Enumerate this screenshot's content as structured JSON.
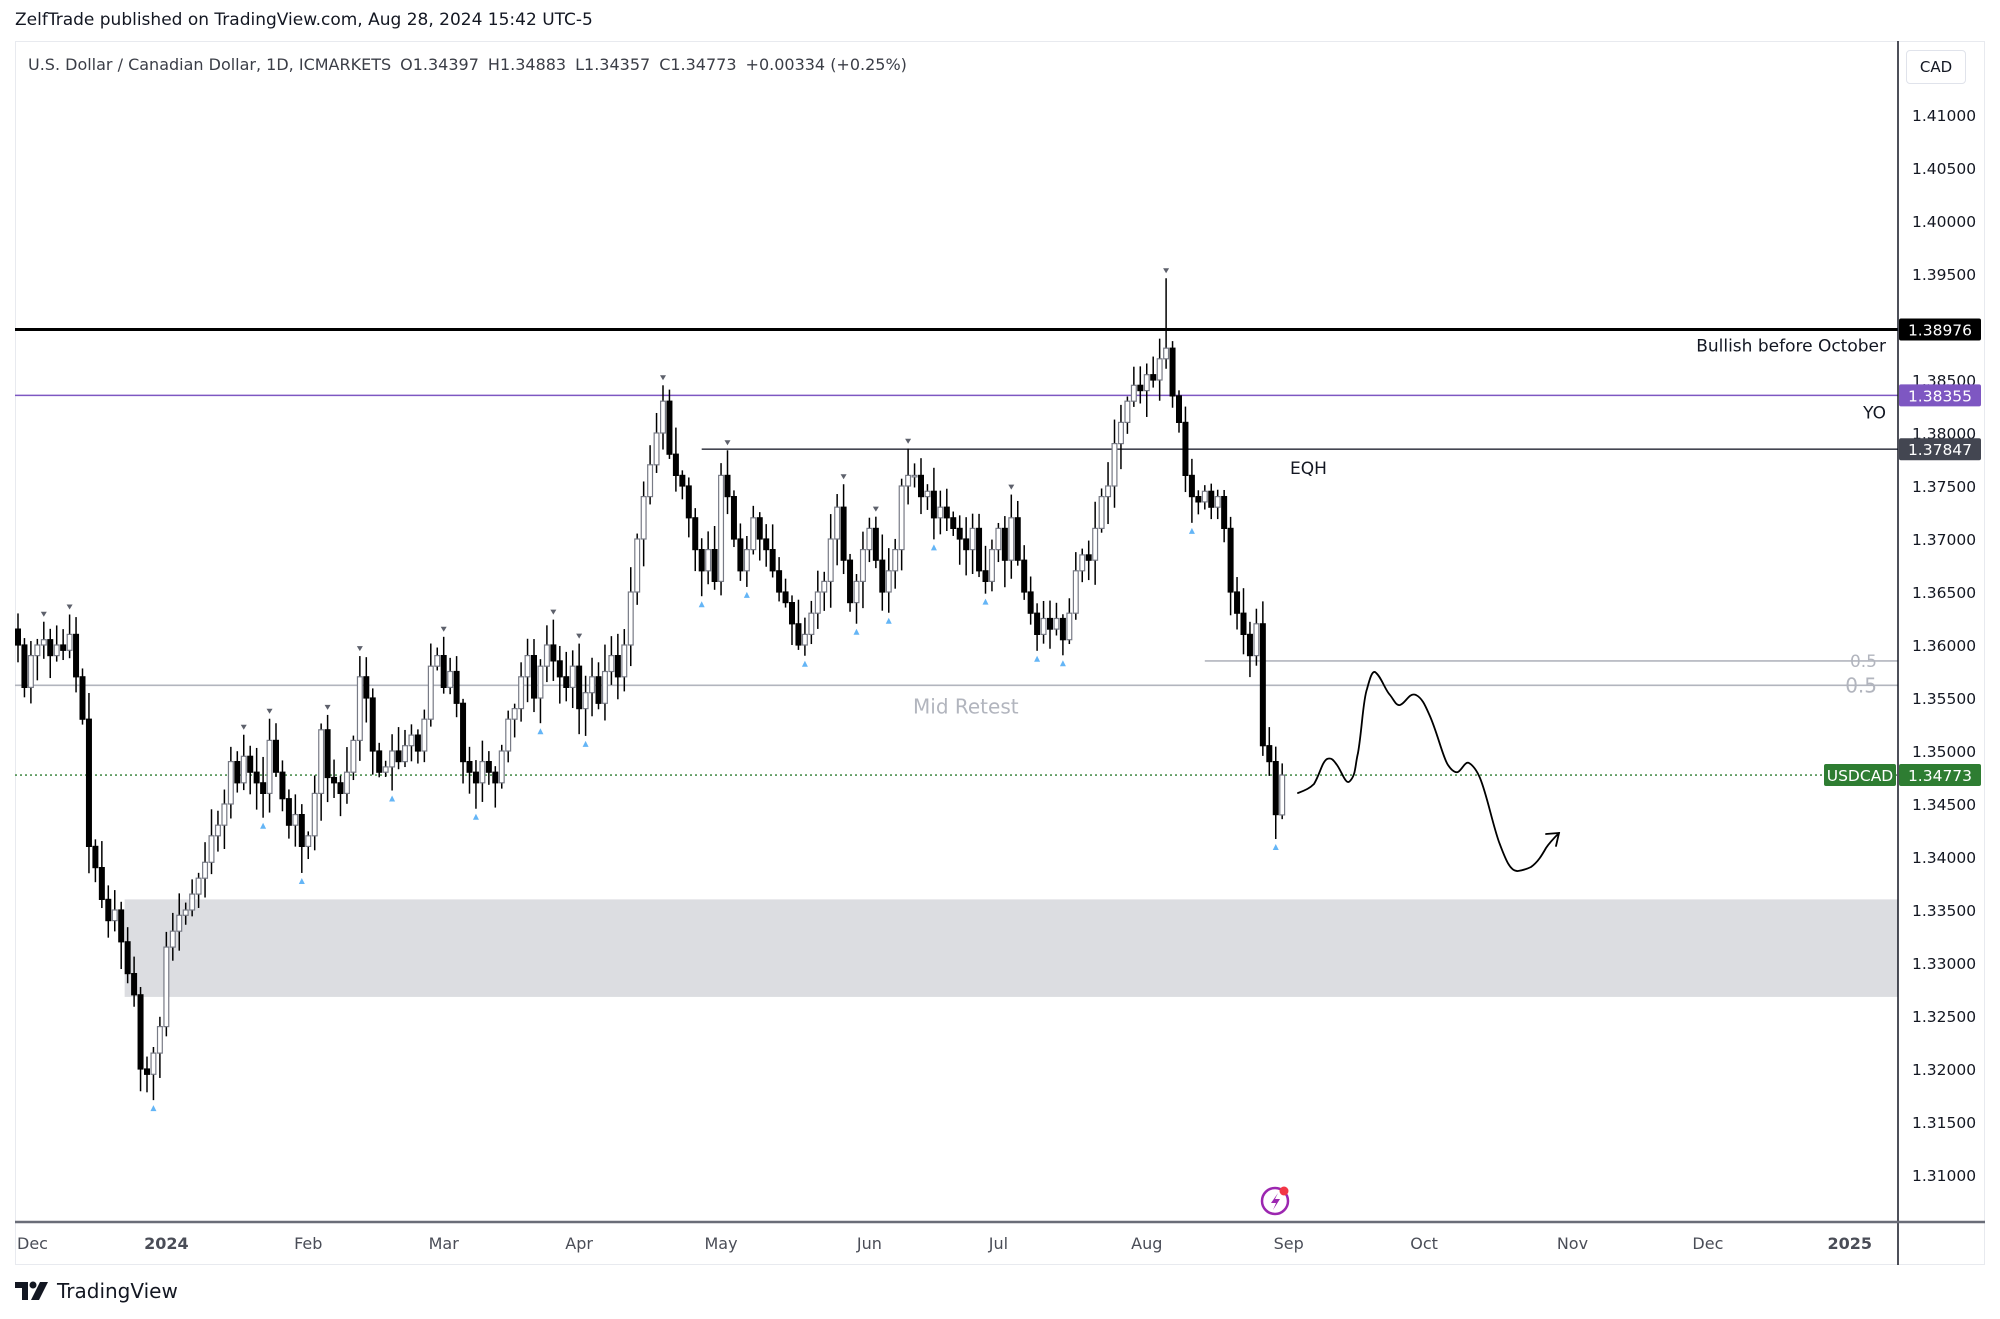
{
  "publisher_line": "ZelfTrade published on TradingView.com, Aug 28, 2024 15:42 UTC-5",
  "legend": {
    "symbol": "U.S. Dollar / Canadian Dollar, 1D, ICMARKETS",
    "open": "O1.34397",
    "high": "H1.34883",
    "low": "L1.34357",
    "close": "C1.34773",
    "change": "+0.00334 (+0.25%)"
  },
  "currency_button": "CAD",
  "footer_brand": "TradingView",
  "colors": {
    "up_body": "#ffffff",
    "up_border": "#787b86",
    "down_body": "#000000",
    "wick": "#000000",
    "bullish_line": "#000000",
    "yo_line": "#7e57c2",
    "eqh_line": "#434651",
    "mid_line": "#b2b5be",
    "last_price": "#2e7d32",
    "zone": "#dcdde1",
    "pivot_low": "#64b5f6",
    "pivot_high": "#5d606b"
  },
  "chart_data": {
    "type": "candlestick",
    "title": "U.S. Dollar / Canadian Dollar, 1D, ICMARKETS",
    "ylim": [
      1.3008,
      1.4152
    ],
    "yticks": [
      "1.41000",
      "1.40500",
      "1.40000",
      "1.39500",
      "1.38500",
      "1.38000",
      "1.37500",
      "1.37000",
      "1.36500",
      "1.36000",
      "1.35500",
      "1.35000",
      "1.34500",
      "1.34000",
      "1.33500",
      "1.33000",
      "1.32500",
      "1.32000",
      "1.31500",
      "1.31000"
    ],
    "xticks": [
      {
        "label": "Dec",
        "index": 2
      },
      {
        "label": "2024",
        "index": 23,
        "bold": true
      },
      {
        "label": "Feb",
        "index": 45
      },
      {
        "label": "Mar",
        "index": 66
      },
      {
        "label": "Apr",
        "index": 87
      },
      {
        "label": "May",
        "index": 109
      },
      {
        "label": "Jun",
        "index": 132
      },
      {
        "label": "Jul",
        "index": 152
      },
      {
        "label": "Aug",
        "index": 175
      },
      {
        "label": "Sep",
        "index": 197
      },
      {
        "label": "Oct",
        "index": 218
      },
      {
        "label": "Nov",
        "index": 241
      },
      {
        "label": "Dec",
        "index": 262
      },
      {
        "label": "2025",
        "index": 284,
        "bold": true
      }
    ],
    "closes": [
      1.36,
      1.356,
      1.359,
      1.36,
      1.3605,
      1.359,
      1.36,
      1.3595,
      1.361,
      1.357,
      1.353,
      1.341,
      1.339,
      1.336,
      1.334,
      1.335,
      1.332,
      1.329,
      1.327,
      1.32,
      1.3195,
      1.3215,
      1.324,
      1.3315,
      1.333,
      1.3345,
      1.335,
      1.3365,
      1.338,
      1.3395,
      1.342,
      1.343,
      1.345,
      1.349,
      1.347,
      1.3495,
      1.348,
      1.347,
      1.346,
      1.351,
      1.348,
      1.3455,
      1.343,
      1.344,
      1.341,
      1.342,
      1.346,
      1.352,
      1.3475,
      1.347,
      1.346,
      1.348,
      1.351,
      1.357,
      1.355,
      1.35,
      1.348,
      1.3485,
      1.35,
      1.349,
      1.3505,
      1.3515,
      1.35,
      1.353,
      1.358,
      1.359,
      1.356,
      1.3575,
      1.3545,
      1.349,
      1.348,
      1.347,
      1.349,
      1.348,
      1.347,
      1.35,
      1.353,
      1.354,
      1.357,
      1.359,
      1.355,
      1.358,
      1.36,
      1.3585,
      1.357,
      1.356,
      1.358,
      1.354,
      1.3555,
      1.357,
      1.3545,
      1.3575,
      1.359,
      1.357,
      1.36,
      1.365,
      1.37,
      1.374,
      1.377,
      1.38,
      1.383,
      1.378,
      1.376,
      1.375,
      1.372,
      1.369,
      1.367,
      1.369,
      1.366,
      1.376,
      1.374,
      1.37,
      1.367,
      1.369,
      1.372,
      1.37,
      1.369,
      1.367,
      1.365,
      1.364,
      1.362,
      1.36,
      1.361,
      1.363,
      1.365,
      1.366,
      1.37,
      1.373,
      1.368,
      1.364,
      1.366,
      1.369,
      1.371,
      1.368,
      1.365,
      1.367,
      1.369,
      1.375,
      1.376,
      1.376,
      1.374,
      1.3745,
      1.372,
      1.373,
      1.372,
      1.371,
      1.37,
      1.369,
      1.371,
      1.367,
      1.366,
      1.369,
      1.371,
      1.368,
      1.372,
      1.368,
      1.365,
      1.363,
      1.361,
      1.3625,
      1.3615,
      1.3625,
      1.3605,
      1.363,
      1.367,
      1.3685,
      1.368,
      1.371,
      1.374,
      1.375,
      1.379,
      1.381,
      1.383,
      1.3845,
      1.384,
      1.3855,
      1.385,
      1.387,
      1.388,
      1.3835,
      1.381,
      1.376,
      1.374,
      1.3735,
      1.3745,
      1.373,
      1.374,
      1.371,
      1.365,
      1.363,
      1.361,
      1.359,
      1.362,
      1.3505,
      1.349,
      1.344,
      1.34773
    ],
    "last_candle": {
      "open": 1.34397,
      "high": 1.34883,
      "low": 1.34357,
      "close": 1.34773
    },
    "extreme_wicks": [
      {
        "index": 178,
        "high": 1.3946
      },
      {
        "index": 20,
        "low": 1.3178
      },
      {
        "index": 100,
        "high": 1.3845
      }
    ],
    "levels": [
      {
        "name": "bullish",
        "price": 1.38976,
        "label": "Bullish before October",
        "badge": "1.38976"
      },
      {
        "name": "yo",
        "price": 1.38355,
        "label": "YO",
        "badge": "1.38355"
      },
      {
        "name": "eqh",
        "price": 1.37847,
        "label": "EQH",
        "badge": "1.37847",
        "start_index": 106
      },
      {
        "name": "mid",
        "price": 1.3562,
        "label": "0.5",
        "text": "Mid Retest"
      },
      {
        "name": "fib",
        "price": 1.3585,
        "label": "0.5",
        "start_index": 184
      },
      {
        "name": "last",
        "price": 1.34773,
        "symbol": "USDCAD",
        "badge": "1.34773"
      }
    ],
    "zone": {
      "top": 1.336,
      "bottom": 1.3268,
      "start_index": 17
    }
  }
}
